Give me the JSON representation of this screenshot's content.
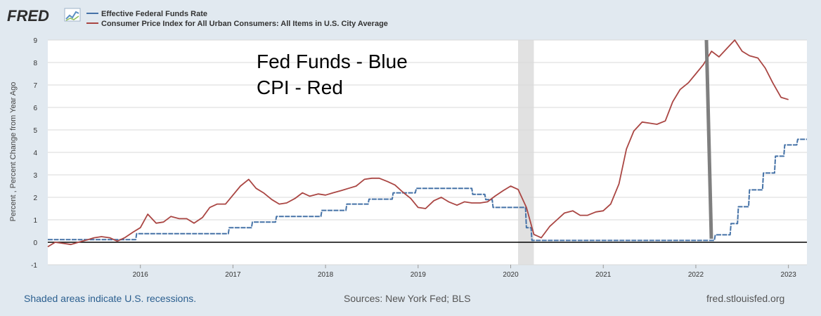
{
  "logo": {
    "text": "FRED"
  },
  "chart_data": {
    "type": "line",
    "title": "",
    "xlabel": "",
    "ylabel": "Percent , Percent Change from Year Ago",
    "ylim": [
      -1,
      9
    ],
    "xlim": [
      2015.0,
      2023.2
    ],
    "y_ticks": [
      "-1",
      "0",
      "1",
      "2",
      "3",
      "4",
      "5",
      "6",
      "7",
      "8",
      "9"
    ],
    "x_ticks": [
      "2016",
      "2017",
      "2018",
      "2019",
      "2020",
      "2021",
      "2022",
      "2023"
    ],
    "grid": true,
    "legend_position": "top-left",
    "series": [
      {
        "name": "Effective Federal Funds Rate",
        "color": "#4572a7",
        "style": "stepped",
        "x": [
          2015.0,
          2015.95,
          2015.96,
          2016.95,
          2016.96,
          2017.2,
          2017.21,
          2017.46,
          2017.47,
          2017.95,
          2017.96,
          2018.22,
          2018.23,
          2018.46,
          2018.47,
          2018.72,
          2018.73,
          2018.97,
          2018.98,
          2019.58,
          2019.59,
          2019.72,
          2019.73,
          2019.8,
          2019.81,
          2020.16,
          2020.17,
          2020.22,
          2020.23,
          2022.2,
          2022.21,
          2022.37,
          2022.38,
          2022.45,
          2022.46,
          2022.57,
          2022.58,
          2022.72,
          2022.73,
          2022.85,
          2022.86,
          2022.95,
          2022.96,
          2023.09,
          2023.1,
          2023.2
        ],
        "y": [
          0.12,
          0.12,
          0.38,
          0.38,
          0.65,
          0.65,
          0.9,
          0.9,
          1.15,
          1.15,
          1.42,
          1.42,
          1.7,
          1.7,
          1.92,
          1.92,
          2.2,
          2.2,
          2.4,
          2.4,
          2.13,
          2.13,
          1.9,
          1.9,
          1.55,
          1.55,
          0.65,
          0.65,
          0.08,
          0.08,
          0.33,
          0.33,
          0.83,
          0.83,
          1.58,
          1.58,
          2.33,
          2.33,
          3.08,
          3.08,
          3.83,
          3.83,
          4.33,
          4.33,
          4.58,
          4.58
        ]
      },
      {
        "name": "Consumer Price Index for All Urban Consumers: All Items in U.S. City Average",
        "color": "#aa4643",
        "style": "line",
        "x": [
          2015.0,
          2015.08,
          2015.17,
          2015.25,
          2015.33,
          2015.42,
          2015.5,
          2015.58,
          2015.67,
          2015.75,
          2015.83,
          2015.92,
          2016.0,
          2016.08,
          2016.17,
          2016.25,
          2016.33,
          2016.42,
          2016.5,
          2016.58,
          2016.67,
          2016.75,
          2016.83,
          2016.92,
          2017.0,
          2017.08,
          2017.17,
          2017.25,
          2017.33,
          2017.42,
          2017.5,
          2017.58,
          2017.67,
          2017.75,
          2017.83,
          2017.92,
          2018.0,
          2018.08,
          2018.17,
          2018.25,
          2018.33,
          2018.42,
          2018.5,
          2018.58,
          2018.67,
          2018.75,
          2018.83,
          2018.92,
          2019.0,
          2019.08,
          2019.17,
          2019.25,
          2019.33,
          2019.42,
          2019.5,
          2019.58,
          2019.67,
          2019.75,
          2019.83,
          2019.92,
          2020.0,
          2020.08,
          2020.17,
          2020.25,
          2020.33,
          2020.42,
          2020.5,
          2020.58,
          2020.67,
          2020.75,
          2020.83,
          2020.92,
          2021.0,
          2021.08,
          2021.17,
          2021.25,
          2021.33,
          2021.42,
          2021.5,
          2021.58,
          2021.67,
          2021.75,
          2021.83,
          2021.92,
          2022.0,
          2022.08,
          2022.17,
          2022.25,
          2022.33,
          2022.42,
          2022.5,
          2022.58,
          2022.67,
          2022.75,
          2022.83,
          2022.92,
          2023.0
        ],
        "y": [
          -0.2,
          0.0,
          -0.05,
          -0.1,
          0.0,
          0.1,
          0.2,
          0.25,
          0.2,
          0.05,
          0.2,
          0.45,
          0.65,
          1.25,
          0.85,
          0.9,
          1.15,
          1.05,
          1.05,
          0.85,
          1.1,
          1.55,
          1.7,
          1.7,
          2.1,
          2.5,
          2.8,
          2.4,
          2.2,
          1.9,
          1.7,
          1.75,
          1.95,
          2.2,
          2.05,
          2.15,
          2.1,
          2.2,
          2.3,
          2.4,
          2.5,
          2.8,
          2.85,
          2.85,
          2.7,
          2.55,
          2.25,
          1.95,
          1.55,
          1.5,
          1.85,
          2.0,
          1.8,
          1.65,
          1.8,
          1.75,
          1.75,
          1.8,
          2.05,
          2.3,
          2.5,
          2.35,
          1.55,
          0.35,
          0.2,
          0.7,
          1.0,
          1.3,
          1.4,
          1.2,
          1.2,
          1.35,
          1.4,
          1.7,
          2.6,
          4.15,
          4.95,
          5.35,
          5.3,
          5.25,
          5.4,
          6.25,
          6.8,
          7.1,
          7.5,
          7.9,
          8.5,
          8.25,
          8.6,
          9.0,
          8.5,
          8.3,
          8.2,
          7.75,
          7.1,
          6.45,
          6.35
        ]
      }
    ],
    "recessions": [
      [
        2020.08,
        2020.25
      ]
    ],
    "annotations": [
      {
        "text": "Fed Funds - Blue"
      },
      {
        "text": "CPI - Red"
      }
    ],
    "vertical_marker_color": "#7f7f7f"
  },
  "footer": {
    "left": "Shaded areas indicate U.S. recessions.",
    "center": "Sources: New York Fed; BLS",
    "right": "fred.stlouisfed.org"
  }
}
